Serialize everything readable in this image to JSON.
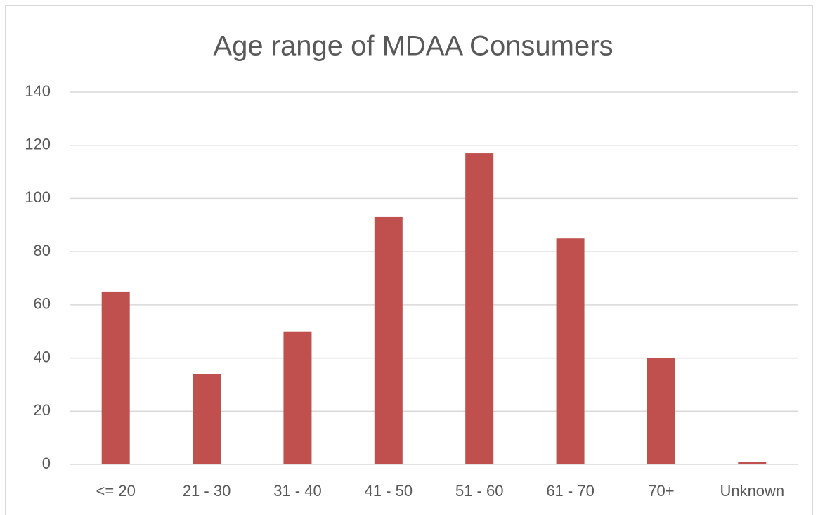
{
  "chart_data": {
    "type": "bar",
    "title": "Age range of MDAA Consumers",
    "categories": [
      "<= 20",
      "21 - 30",
      "31 - 40",
      "41 - 50",
      "51 - 60",
      "61 - 70",
      "70+",
      "Unknown"
    ],
    "values": [
      65,
      34,
      50,
      93,
      117,
      85,
      40,
      1
    ],
    "color": "#c0504d",
    "ylim": [
      0,
      140
    ],
    "yticks": [
      0,
      20,
      40,
      60,
      80,
      100,
      120,
      140
    ],
    "grid": true
  }
}
